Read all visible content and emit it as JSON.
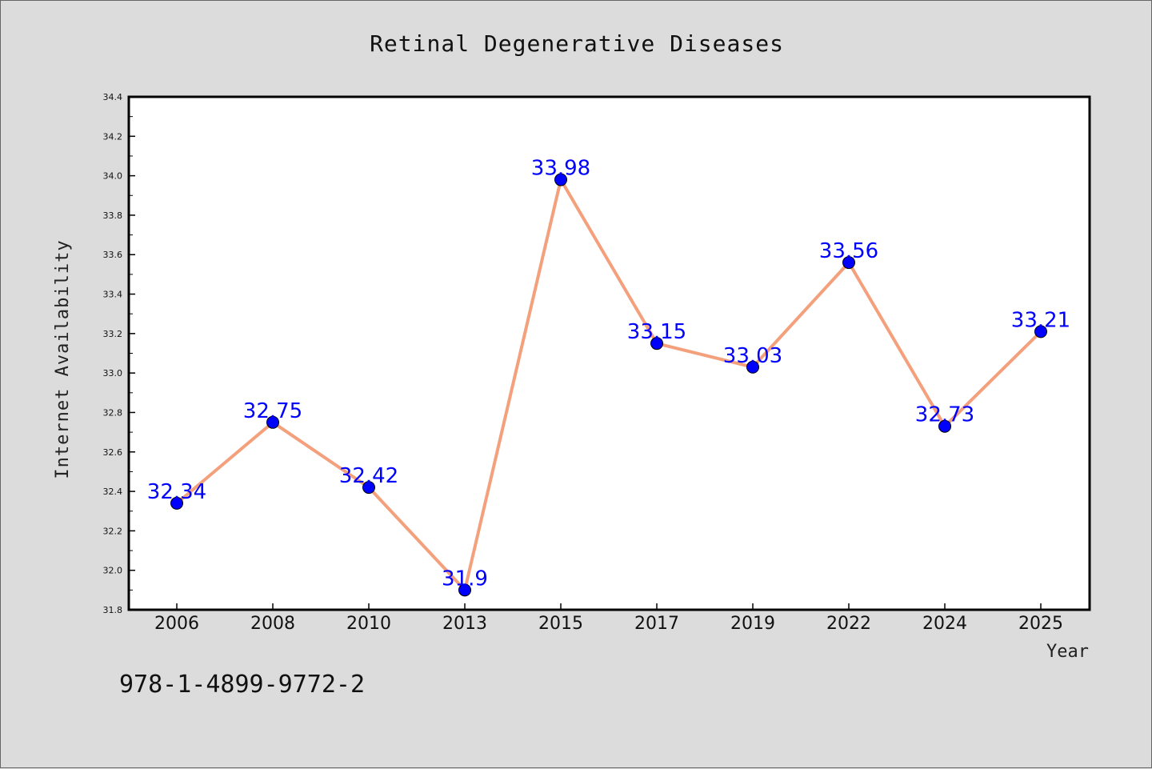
{
  "chart_data": {
    "type": "line",
    "title": "Retinal Degenerative Diseases",
    "xlabel": "Year",
    "ylabel": "Internet Availability",
    "categories": [
      "2006",
      "2008",
      "2010",
      "2013",
      "2015",
      "2017",
      "2019",
      "2022",
      "2024",
      "2025"
    ],
    "series": [
      {
        "values": [
          32.34,
          32.75,
          32.42,
          31.9,
          33.98,
          33.15,
          33.03,
          33.56,
          32.73,
          33.21
        ],
        "labels": [
          "32.34",
          "32.75",
          "32.42",
          "31.9",
          "33.98",
          "33.15",
          "33.03",
          "33.56",
          "32.73",
          "33.21"
        ],
        "line_color": "#f4a07c",
        "marker_color": "#0000ff"
      }
    ],
    "ylim": [
      31.8,
      34.4
    ],
    "yticks": [
      "31.8",
      "32.0",
      "32.2",
      "32.4",
      "32.6",
      "32.8",
      "33.0",
      "33.2",
      "33.4",
      "33.6",
      "33.8",
      "34.0",
      "34.2",
      "34.4"
    ],
    "grid": false,
    "label_color": "#0000ff"
  },
  "footer_code": "978-1-4899-9772-2"
}
